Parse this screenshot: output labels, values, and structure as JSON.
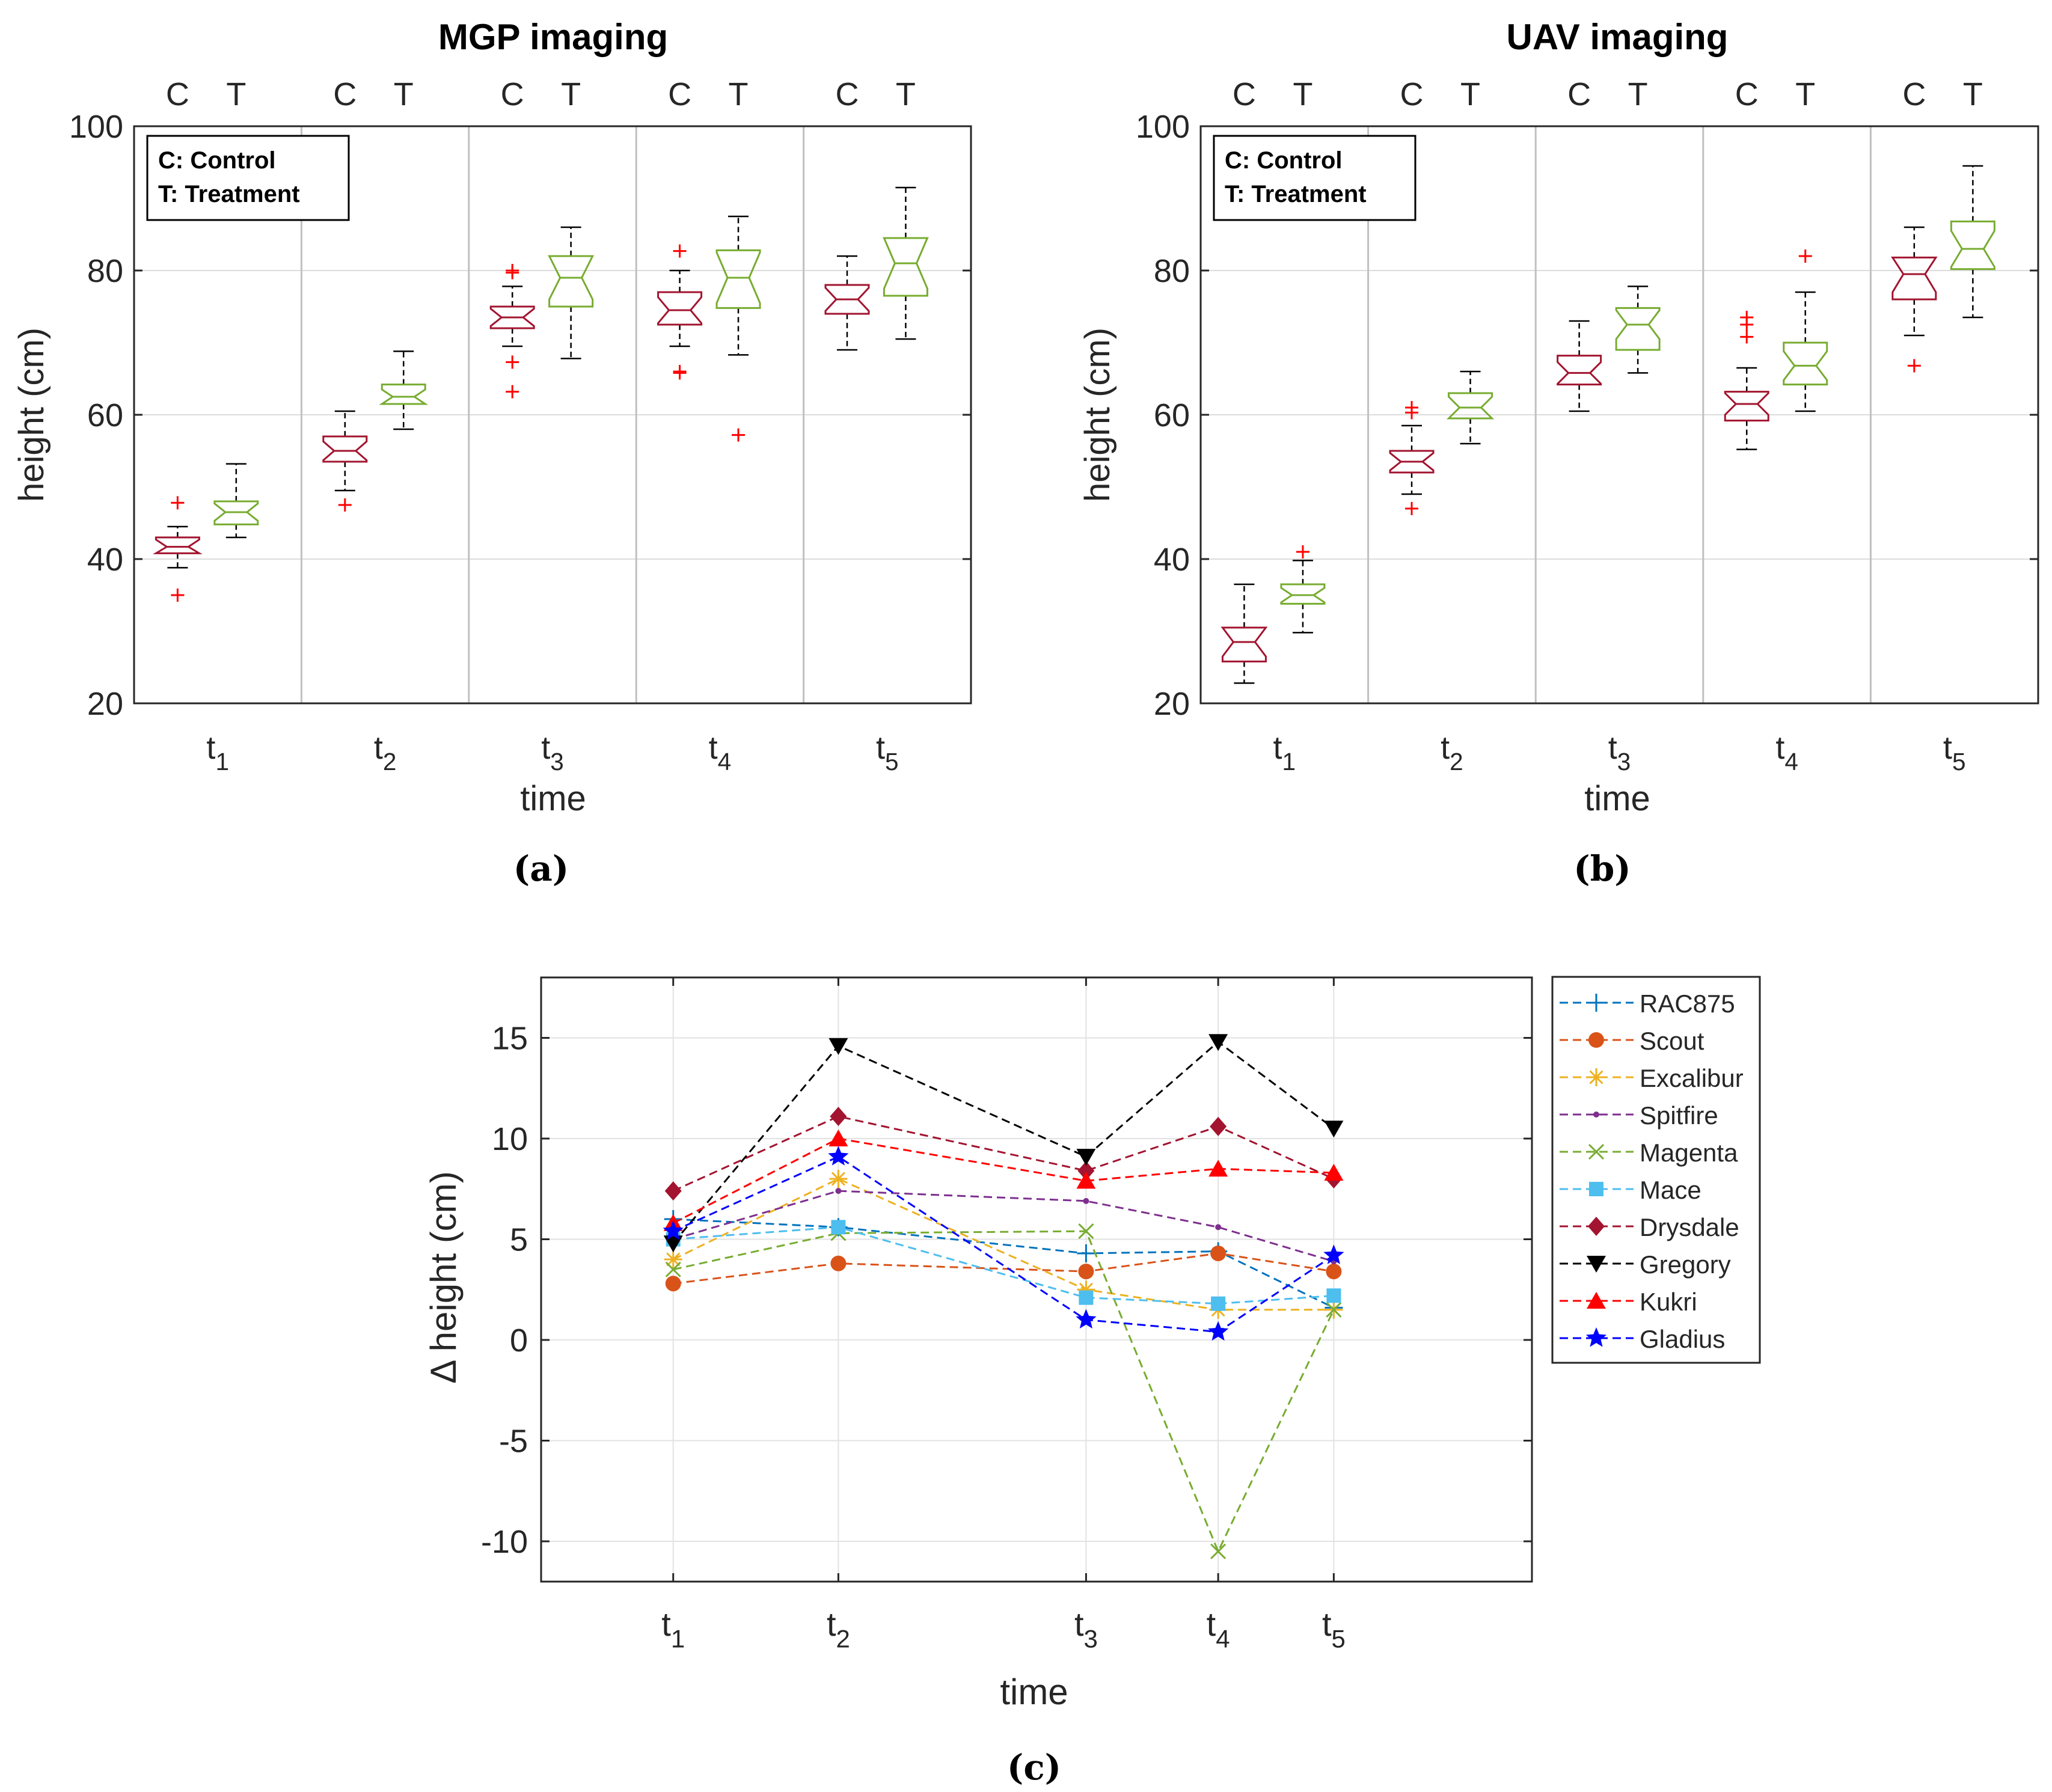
{
  "chart_data": [
    {
      "type": "boxplot",
      "panel": "a",
      "caption": "(a)",
      "title": "MGP imaging",
      "xlabel": "time",
      "ylabel": "height (cm)",
      "ylim": [
        20,
        100
      ],
      "yticks": [
        20,
        40,
        60,
        80,
        100
      ],
      "group_label_c": "C",
      "group_label_t": "T",
      "note_lines": [
        "C: Control",
        "T: Treatment"
      ],
      "categories": [
        {
          "main": "t",
          "sub": "1"
        },
        {
          "main": "t",
          "sub": "2"
        },
        {
          "main": "t",
          "sub": "3"
        },
        {
          "main": "t",
          "sub": "4"
        },
        {
          "main": "t",
          "sub": "5"
        }
      ],
      "series": [
        {
          "name": "Control",
          "color": "#A2142F",
          "boxes": [
            {
              "q1": 40.8,
              "median": 41.7,
              "q3": 43.0,
              "wlo": 38.8,
              "whi": 44.5,
              "notch": 1.0,
              "outliers": [
                47.8,
                35.0
              ]
            },
            {
              "q1": 53.5,
              "median": 55.0,
              "q3": 57.0,
              "wlo": 49.5,
              "whi": 60.5,
              "notch": 1.3,
              "outliers": [
                47.5
              ]
            },
            {
              "q1": 72.0,
              "median": 73.5,
              "q3": 75.0,
              "wlo": 69.5,
              "whi": 77.8,
              "notch": 1.2,
              "outliers": [
                79.7,
                80.0,
                67.3,
                63.2
              ]
            },
            {
              "q1": 72.5,
              "median": 74.5,
              "q3": 77.0,
              "wlo": 69.5,
              "whi": 80.0,
              "notch": 1.8,
              "outliers": [
                82.7,
                66.0,
                65.8
              ]
            },
            {
              "q1": 74.0,
              "median": 76.0,
              "q3": 78.0,
              "wlo": 69.0,
              "whi": 82.0,
              "notch": 1.6,
              "outliers": []
            }
          ]
        },
        {
          "name": "Treatment",
          "color": "#77AC30",
          "boxes": [
            {
              "q1": 44.8,
              "median": 46.5,
              "q3": 48.0,
              "wlo": 43.0,
              "whi": 53.2,
              "notch": 1.2,
              "outliers": []
            },
            {
              "q1": 61.5,
              "median": 62.5,
              "q3": 64.2,
              "wlo": 58.0,
              "whi": 68.8,
              "notch": 1.0,
              "outliers": []
            },
            {
              "q1": 75.0,
              "median": 79.0,
              "q3": 82.0,
              "wlo": 67.8,
              "whi": 86.0,
              "notch": 3.0,
              "outliers": []
            },
            {
              "q1": 74.8,
              "median": 79.0,
              "q3": 82.8,
              "wlo": 68.3,
              "whi": 87.5,
              "notch": 3.5,
              "outliers": [
                57.2
              ]
            },
            {
              "q1": 76.5,
              "median": 81.0,
              "q3": 84.5,
              "wlo": 70.5,
              "whi": 91.5,
              "notch": 3.5,
              "outliers": []
            }
          ]
        }
      ]
    },
    {
      "type": "boxplot",
      "panel": "b",
      "caption": "(b)",
      "title": "UAV imaging",
      "xlabel": "time",
      "ylabel": "height (cm)",
      "ylim": [
        20,
        100
      ],
      "yticks": [
        20,
        40,
        60,
        80,
        100
      ],
      "group_label_c": "C",
      "group_label_t": "T",
      "note_lines": [
        "C: Control",
        "T: Treatment"
      ],
      "categories": [
        {
          "main": "t",
          "sub": "1"
        },
        {
          "main": "t",
          "sub": "2"
        },
        {
          "main": "t",
          "sub": "3"
        },
        {
          "main": "t",
          "sub": "4"
        },
        {
          "main": "t",
          "sub": "5"
        }
      ],
      "series": [
        {
          "name": "Control",
          "color": "#A2142F",
          "boxes": [
            {
              "q1": 25.8,
              "median": 28.5,
              "q3": 30.5,
              "wlo": 22.8,
              "whi": 36.5,
              "notch": 2.0,
              "outliers": []
            },
            {
              "q1": 52.0,
              "median": 53.5,
              "q3": 55.0,
              "wlo": 49.0,
              "whi": 58.5,
              "notch": 1.2,
              "outliers": [
                61.0,
                60.3,
                47.0
              ]
            },
            {
              "q1": 64.2,
              "median": 65.8,
              "q3": 68.2,
              "wlo": 60.5,
              "whi": 73.0,
              "notch": 1.5,
              "outliers": []
            },
            {
              "q1": 59.2,
              "median": 61.5,
              "q3": 63.2,
              "wlo": 55.2,
              "whi": 66.5,
              "notch": 1.5,
              "outliers": [
                73.5,
                72.5,
                70.8
              ]
            },
            {
              "q1": 76.0,
              "median": 79.5,
              "q3": 81.8,
              "wlo": 71.0,
              "whi": 86.0,
              "notch": 2.5,
              "outliers": [
                66.8
              ]
            }
          ]
        },
        {
          "name": "Treatment",
          "color": "#77AC30",
          "boxes": [
            {
              "q1": 33.8,
              "median": 35.0,
              "q3": 36.5,
              "wlo": 29.8,
              "whi": 39.8,
              "notch": 1.0,
              "outliers": [
                41.0
              ]
            },
            {
              "q1": 59.5,
              "median": 61.0,
              "q3": 63.0,
              "wlo": 56.0,
              "whi": 66.0,
              "notch": 1.5,
              "outliers": []
            },
            {
              "q1": 69.0,
              "median": 72.5,
              "q3": 74.8,
              "wlo": 65.8,
              "whi": 77.8,
              "notch": 2.0,
              "outliers": []
            },
            {
              "q1": 64.2,
              "median": 66.8,
              "q3": 70.0,
              "wlo": 60.5,
              "whi": 77.0,
              "notch": 2.0,
              "outliers": [
                82.0
              ]
            },
            {
              "q1": 80.2,
              "median": 83.0,
              "q3": 86.8,
              "wlo": 73.5,
              "whi": 94.5,
              "notch": 2.5,
              "outliers": []
            }
          ]
        }
      ]
    },
    {
      "type": "line",
      "panel": "c",
      "caption": "(c)",
      "xlabel": "time",
      "ylabel": "Δ height (cm)",
      "ylim": [
        -12,
        18
      ],
      "yticks": [
        -10,
        -5,
        0,
        5,
        10,
        15
      ],
      "x": [
        1,
        2,
        3.5,
        4.3,
        5
      ],
      "xticklabels": [
        {
          "main": "t",
          "sub": "1"
        },
        {
          "main": "t",
          "sub": "2"
        },
        {
          "main": "t",
          "sub": "3"
        },
        {
          "main": "t",
          "sub": "4"
        },
        {
          "main": "t",
          "sub": "5"
        }
      ],
      "series": [
        {
          "name": "RAC875",
          "color": "#0072BD",
          "marker": "plus",
          "values": [
            6.0,
            5.6,
            4.3,
            4.4,
            1.6
          ]
        },
        {
          "name": "Scout",
          "color": "#D95319",
          "marker": "circle",
          "values": [
            2.8,
            3.8,
            3.4,
            4.3,
            3.4
          ]
        },
        {
          "name": "Excalibur",
          "color": "#EDB120",
          "marker": "asterisk",
          "values": [
            4.0,
            8.0,
            2.5,
            1.5,
            1.5
          ]
        },
        {
          "name": "Spitfire",
          "color": "#7E2F8E",
          "marker": "dot",
          "values": [
            5.0,
            7.4,
            6.9,
            5.6,
            3.9
          ]
        },
        {
          "name": "Magenta",
          "color": "#77AC30",
          "marker": "x",
          "values": [
            3.5,
            5.3,
            5.4,
            -10.5,
            1.5
          ]
        },
        {
          "name": "Mace",
          "color": "#4DBEEE",
          "marker": "square",
          "values": [
            5.0,
            5.6,
            2.1,
            1.8,
            2.2
          ]
        },
        {
          "name": "Drysdale",
          "color": "#A2142F",
          "marker": "diamond",
          "values": [
            7.4,
            11.1,
            8.4,
            10.6,
            8.0
          ]
        },
        {
          "name": "Gregory",
          "color": "#000000",
          "marker": "tri-down",
          "values": [
            4.8,
            14.6,
            9.1,
            14.8,
            10.5
          ]
        },
        {
          "name": "Kukri",
          "color": "#FF0000",
          "marker": "tri-up",
          "values": [
            5.8,
            10.0,
            7.9,
            8.5,
            8.3
          ]
        },
        {
          "name": "Gladius",
          "color": "#0000FF",
          "marker": "star",
          "values": [
            5.4,
            9.1,
            1.0,
            0.4,
            4.2
          ]
        }
      ]
    }
  ]
}
